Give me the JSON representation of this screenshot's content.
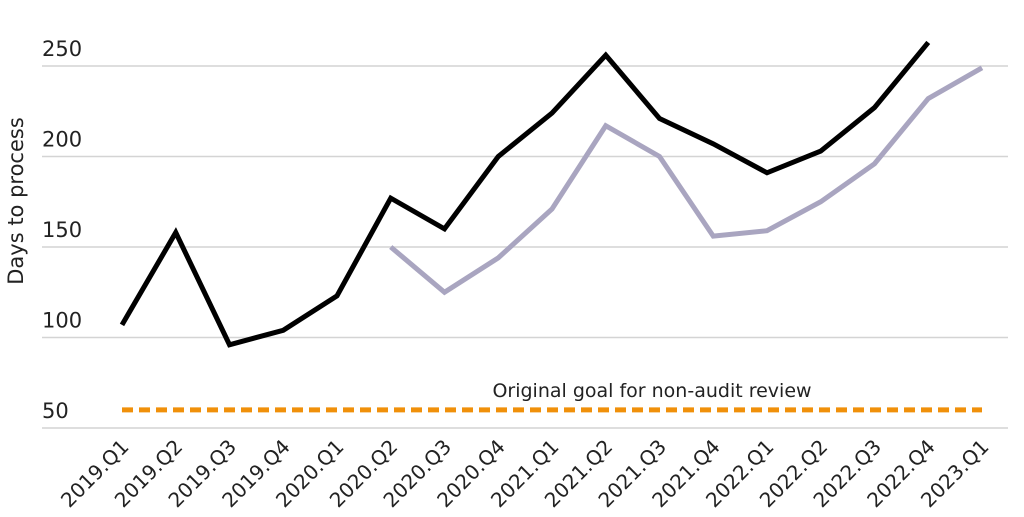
{
  "chart_data": {
    "type": "line",
    "title": "",
    "xlabel": "",
    "ylabel": "Days to process",
    "ylim": [
      50,
      250
    ],
    "yticks": [
      50,
      100,
      150,
      200,
      250
    ],
    "grid": true,
    "categories": [
      "2019.Q1",
      "2019.Q2",
      "2019.Q3",
      "2019.Q4",
      "2020.Q1",
      "2020.Q2",
      "2020.Q3",
      "2020.Q4",
      "2021.Q1",
      "2021.Q2",
      "2021.Q3",
      "2021.Q4",
      "2022.Q1",
      "2022.Q2",
      "2022.Q3",
      "2022.Q4",
      "2023.Q1"
    ],
    "series": [
      {
        "color": "#000000",
        "values": [
          107,
          158,
          96,
          104,
          123,
          177,
          160,
          200,
          224,
          256,
          221,
          207,
          191,
          203,
          227,
          263,
          null
        ]
      },
      {
        "color": "#a9a5c0",
        "values": [
          null,
          null,
          null,
          null,
          null,
          150,
          125,
          144,
          171,
          217,
          200,
          156,
          159,
          175,
          196,
          232,
          249
        ]
      }
    ],
    "reference_line": {
      "value": 60,
      "label": "Original goal for non-audit review",
      "color": "#f0900a",
      "style": "dashed"
    }
  }
}
